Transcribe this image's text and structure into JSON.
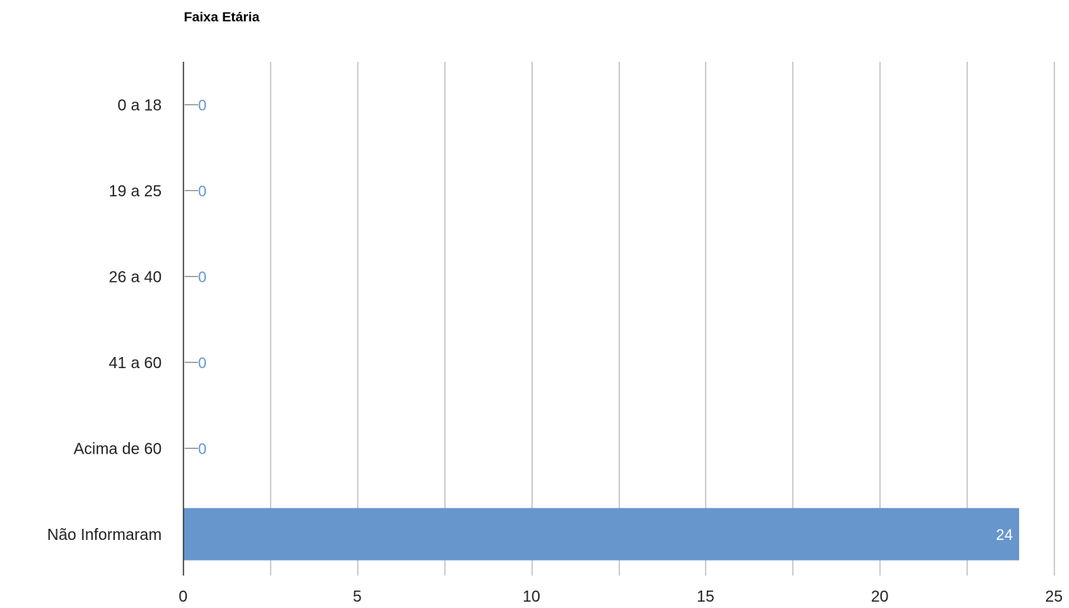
{
  "chart_data": {
    "type": "bar",
    "orientation": "horizontal",
    "title": "Faixa Etária",
    "xlabel": "",
    "ylabel": "",
    "categories": [
      "0 a 18",
      "19 a 25",
      "26 a 40",
      "41 a 60",
      "Acima de 60",
      "Não Informaram"
    ],
    "values": [
      0,
      0,
      0,
      0,
      0,
      24
    ],
    "data_labels": [
      "0",
      "0",
      "0",
      "0",
      "0",
      "24"
    ],
    "xlim": [
      0,
      25
    ],
    "x_ticks": [
      "0",
      "5",
      "10",
      "15",
      "20",
      "25"
    ],
    "grid": true,
    "minor_gridlines": true,
    "legend": "none",
    "colors": {
      "bar": "#6796cc",
      "zero_label": "#6796cc",
      "inside_label": "#ffffff",
      "gridline": "#c0c0c0",
      "axis": "#333333",
      "text": "#222222"
    }
  }
}
